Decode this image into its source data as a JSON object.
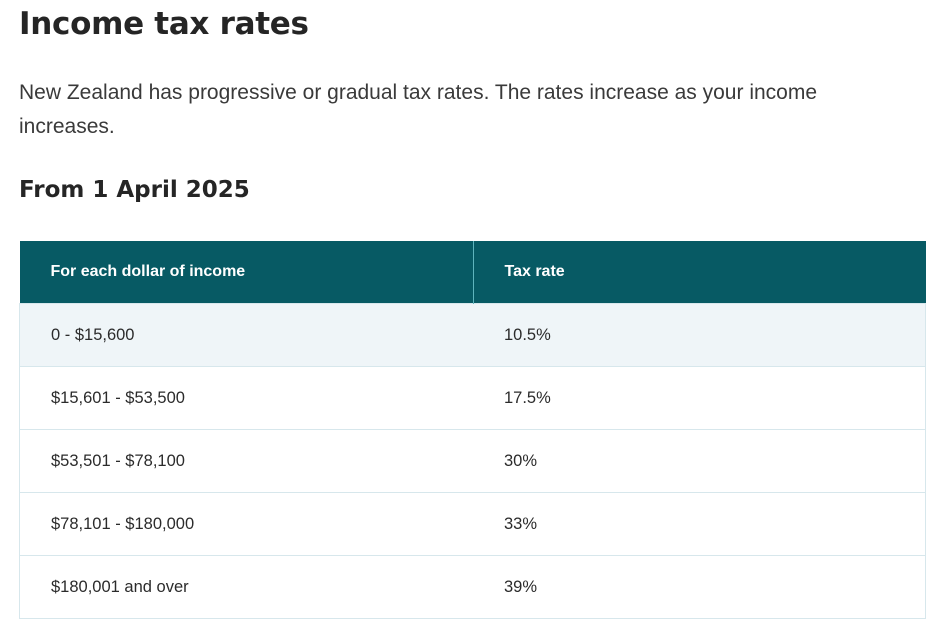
{
  "heading": "Income tax rates",
  "intro": "New Zealand has progressive or gradual tax rates. The rates increase as your income increases.",
  "subheading": "From 1 April 2025",
  "table": {
    "header_col1": "For each dollar of income",
    "header_col2": "Tax rate",
    "rows": [
      {
        "income": "0 - $15,600",
        "rate": "10.5%"
      },
      {
        "income": "$15,601 - $53,500",
        "rate": "17.5%"
      },
      {
        "income": "$53,501 - $78,100",
        "rate": "30%"
      },
      {
        "income": "$78,101 - $180,000",
        "rate": "33%"
      },
      {
        "income": "$180,001 and over",
        "rate": "39%"
      }
    ]
  },
  "colors": {
    "header_bg": "#075a64",
    "row_alt_bg": "#eff5f8",
    "border": "#d7e7ec"
  }
}
